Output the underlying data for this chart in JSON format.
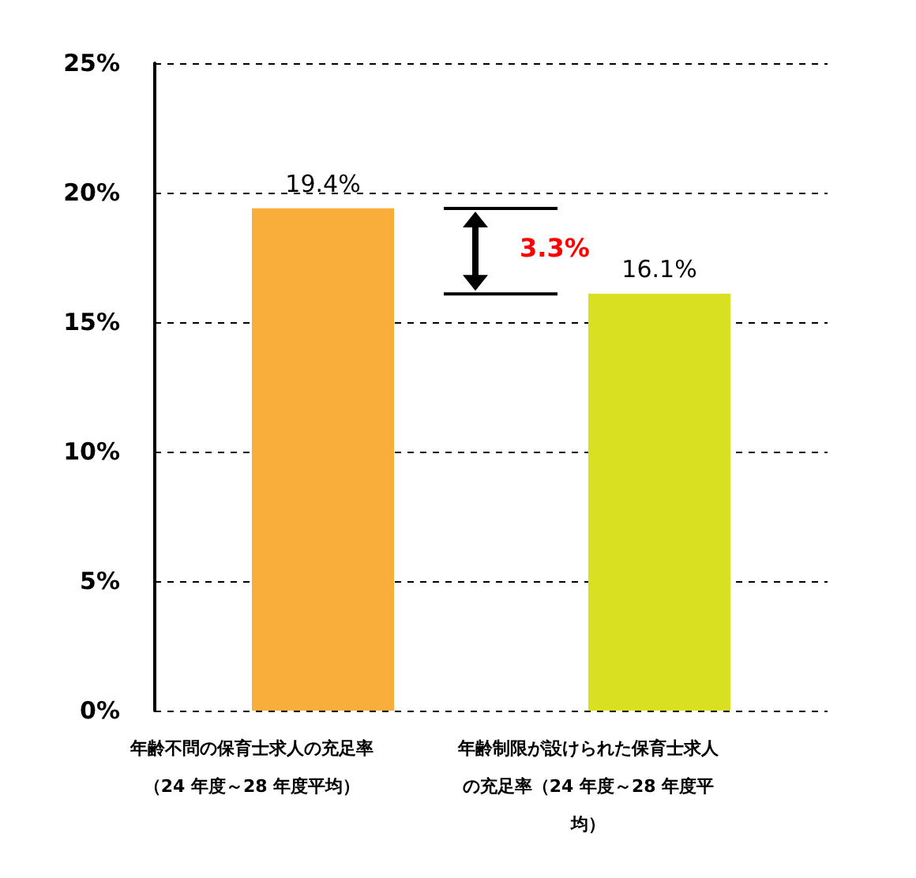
{
  "chart_data": {
    "type": "bar",
    "categories": [
      "年齢不問の保育士求人の充足率（24 年度～28 年度平均）",
      "年齢制限が設けられた保育士求人の充足率（24 年度～28 年度平均）"
    ],
    "values": [
      19.4,
      16.1
    ],
    "colors": [
      "#f9ae3c",
      "#d9e021"
    ],
    "value_labels": [
      "19.4%",
      "16.1%"
    ],
    "ylim": [
      0,
      25
    ],
    "yticks": [
      {
        "value": 0,
        "label": "0%"
      },
      {
        "value": 5,
        "label": "5%"
      },
      {
        "value": 10,
        "label": "10%"
      },
      {
        "value": 15,
        "label": "15%"
      },
      {
        "value": 20,
        "label": "20%"
      },
      {
        "value": 25,
        "label": "25%"
      }
    ],
    "grid": "y",
    "annotations": [
      "3.3%"
    ]
  }
}
